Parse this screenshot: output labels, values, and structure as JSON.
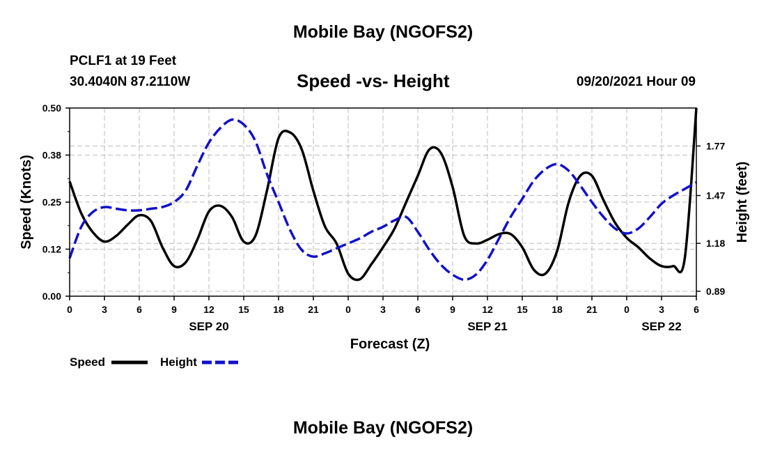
{
  "header": {
    "top_title": "Mobile Bay (NGOFS2)",
    "station": "PCLF1 at 19 Feet",
    "coords": "30.4040N  87.2110W",
    "date": "09/20/2021 Hour 09",
    "bottom_title": "Mobile Bay (NGOFS2)"
  },
  "colors": {
    "speed": "#000000",
    "height": "#1010cc",
    "grid": "#bbbbbb",
    "axis": "#000000"
  },
  "chart_data": {
    "type": "line",
    "title": "Speed -vs- Height",
    "xlabel": "Forecast (Z)",
    "ylabel": "Speed (Knots)",
    "y2label": "Height (feet)",
    "xlim": [
      0,
      54
    ],
    "ylim": [
      0,
      0.5
    ],
    "y2lim": [
      0.86,
      2.0
    ],
    "grid": true,
    "x_ticks": [
      0,
      3,
      6,
      9,
      12,
      15,
      18,
      21,
      24,
      27,
      30,
      33,
      36,
      39,
      42,
      45,
      48,
      51,
      54
    ],
    "x_tick_labels": [
      "0",
      "3",
      "6",
      "9",
      "12",
      "15",
      "18",
      "21",
      "0",
      "3",
      "6",
      "9",
      "12",
      "15",
      "18",
      "21",
      "0",
      "3",
      "6"
    ],
    "y_ticks": [
      0.0,
      0.125,
      0.25,
      0.375,
      0.5
    ],
    "y_tick_labels": [
      "0.00",
      "0.12",
      "0.25",
      "0.38",
      "0.50"
    ],
    "y2_ticks": [
      0.89,
      1.18,
      1.47,
      1.77
    ],
    "y2_tick_labels": [
      "0.89",
      "1.18",
      "1.47",
      "1.77"
    ],
    "date_labels": [
      {
        "x": 12,
        "label": "SEP 20"
      },
      {
        "x": 36,
        "label": "SEP 21"
      },
      {
        "x": 51,
        "label": "SEP 22"
      }
    ],
    "legend": {
      "position": "bottom-left",
      "entries": [
        "Speed",
        "Height"
      ]
    },
    "series": [
      {
        "name": "Speed",
        "axis": "left",
        "style": "solid",
        "x": [
          0,
          1,
          2,
          3,
          4,
          5,
          6,
          7,
          8,
          9,
          10,
          11,
          12,
          13,
          14,
          15,
          16,
          17,
          18,
          19,
          20,
          21,
          22,
          23,
          24,
          25,
          26,
          27,
          28,
          29,
          30,
          31,
          32,
          33,
          34,
          35,
          36,
          37,
          38,
          39,
          40,
          41,
          42,
          43,
          44,
          45,
          46,
          47,
          48,
          49,
          50,
          51,
          52,
          53,
          54
        ],
        "values": [
          0.305,
          0.22,
          0.17,
          0.145,
          0.16,
          0.19,
          0.215,
          0.2,
          0.13,
          0.08,
          0.09,
          0.15,
          0.225,
          0.24,
          0.21,
          0.145,
          0.16,
          0.28,
          0.42,
          0.435,
          0.39,
          0.28,
          0.185,
          0.14,
          0.06,
          0.045,
          0.085,
          0.13,
          0.18,
          0.25,
          0.32,
          0.39,
          0.38,
          0.29,
          0.16,
          0.14,
          0.15,
          0.165,
          0.165,
          0.13,
          0.07,
          0.06,
          0.12,
          0.25,
          0.32,
          0.32,
          0.255,
          0.195,
          0.155,
          0.13,
          0.1,
          0.08,
          0.08,
          0.1,
          0.5
        ]
      },
      {
        "name": "Height",
        "axis": "right",
        "style": "dashed",
        "x": [
          0,
          1,
          2,
          3,
          4,
          5,
          6,
          7,
          8,
          9,
          10,
          11,
          12,
          13,
          14,
          15,
          16,
          17,
          18,
          19,
          20,
          21,
          22,
          23,
          24,
          25,
          26,
          27,
          28,
          29,
          30,
          31,
          32,
          33,
          34,
          35,
          36,
          37,
          38,
          39,
          40,
          41,
          42,
          43,
          44,
          45,
          46,
          47,
          48,
          49,
          50,
          51,
          52,
          53,
          54
        ],
        "values": [
          1.09,
          1.28,
          1.37,
          1.4,
          1.39,
          1.38,
          1.38,
          1.39,
          1.4,
          1.43,
          1.5,
          1.65,
          1.79,
          1.88,
          1.93,
          1.9,
          1.8,
          1.6,
          1.43,
          1.26,
          1.14,
          1.1,
          1.12,
          1.15,
          1.18,
          1.21,
          1.25,
          1.28,
          1.32,
          1.34,
          1.25,
          1.14,
          1.05,
          0.99,
          0.96,
          0.99,
          1.08,
          1.21,
          1.34,
          1.45,
          1.56,
          1.63,
          1.66,
          1.62,
          1.53,
          1.43,
          1.34,
          1.27,
          1.24,
          1.27,
          1.34,
          1.42,
          1.47,
          1.51,
          1.55
        ]
      }
    ]
  }
}
